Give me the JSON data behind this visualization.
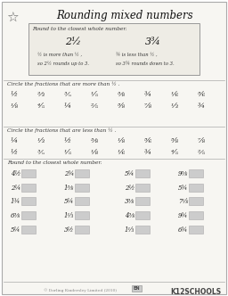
{
  "title": "Rounding mixed numbers",
  "page_bg": "#f7f6f2",
  "border_color": "#999999",
  "instruction_box": {
    "text": "Round to the closest whole number.",
    "ex_left": "2½",
    "ex_right": "3¾",
    "l1_left": "½ is more than ½ ,",
    "l1_right": "¾ is less than ½ ,",
    "l2_left": "so 2½ rounds up to 3.",
    "l2_right": "so 3¾ rounds down to 3."
  },
  "sec1_title": "Circle the fractions that are more than ½ .",
  "sec1_row1": [
    "½",
    "⅔",
    "⅗",
    "⅕",
    "⅜",
    "¾",
    "⅙",
    "⅚"
  ],
  "sec1_row2": [
    "⅛",
    "⅘",
    "¼",
    "⅖",
    "⅝",
    "⅞",
    "⅓",
    "¾"
  ],
  "sec2_title": "Circle the fractions that are less than ½ .",
  "sec2_row1": [
    "¼",
    "⅓",
    "½",
    "⅜",
    "⅛",
    "⅚",
    "⅝",
    "⅞"
  ],
  "sec2_row2": [
    "½",
    "⅗",
    "⅕",
    "⅛",
    "⅙",
    "¾",
    "⅘",
    "⅖"
  ],
  "sec3_title": "Round to the closest whole number.",
  "sec3_items": [
    [
      "4½",
      "2¾",
      "5¼",
      "9⅜"
    ],
    [
      "2¼",
      "1⅜",
      "2½",
      "5¾"
    ],
    [
      "1¾",
      "5¼",
      "3⅜",
      "7⅛"
    ],
    [
      "6⅜",
      "1⅓",
      "4⅜",
      "9¾"
    ],
    [
      "5¼",
      "3½",
      "1⅓",
      "6¾"
    ]
  ],
  "footer_left": "© Dorling Kindersley Limited (2010)",
  "footer_mid": "EN",
  "footer_right": "K12SCHOOLS"
}
